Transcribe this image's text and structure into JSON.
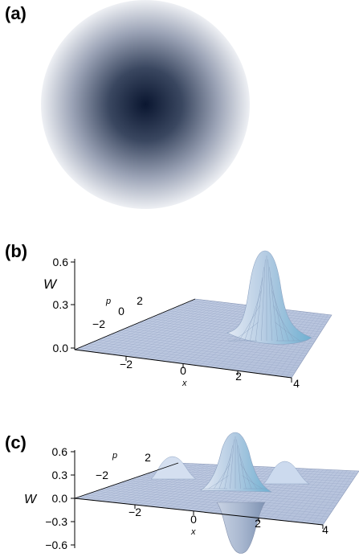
{
  "panels": {
    "a": {
      "label": "(a)"
    },
    "b": {
      "label": "(b)"
    },
    "c": {
      "label": "(c)"
    }
  },
  "colors": {
    "disk_center": "#0c1a33",
    "disk_edge": "#ecedf2",
    "surface_low": "#cad6ea",
    "surface_high": "#7ab2d2",
    "axis": "#000000"
  },
  "chart_data": [
    {
      "type": "heatmap",
      "panel": "(a)",
      "description_shape": "disk",
      "shading": "radial gradient, darkest at center"
    },
    {
      "type": "surface",
      "panel": "(b)",
      "zlabel": "W",
      "xlabel": "x",
      "ylabel": "p",
      "z_ticks": [
        "0.0",
        "0.3",
        "0.6"
      ],
      "x_ticks": [
        "−2",
        "0",
        "2",
        "4"
      ],
      "p_ticks": [
        "−2",
        "0",
        "2"
      ],
      "zlim": [
        0,
        0.6
      ],
      "peaks": [
        {
          "x": 2.3,
          "p": 1.5,
          "W": 0.64
        }
      ]
    },
    {
      "type": "surface",
      "panel": "(c)",
      "zlabel": "W",
      "xlabel": "x",
      "ylabel": "p",
      "z_ticks": [
        "0.6",
        "0.3",
        "0.0",
        "−0.3",
        "−0.6"
      ],
      "x_ticks": [
        "−2",
        "0",
        "2",
        "4"
      ],
      "p_ticks": [
        "−2",
        "2"
      ],
      "zlim": [
        -0.6,
        0.6
      ],
      "peaks": [
        {
          "x": -0.9,
          "p": 2.0,
          "W": 0.22
        },
        {
          "x": 1.3,
          "p": 2.0,
          "W": 0.58
        },
        {
          "x": 2.9,
          "p": 2.0,
          "W": 0.22
        },
        {
          "x": 0.9,
          "p": -1.0,
          "W": -0.55
        }
      ]
    }
  ]
}
